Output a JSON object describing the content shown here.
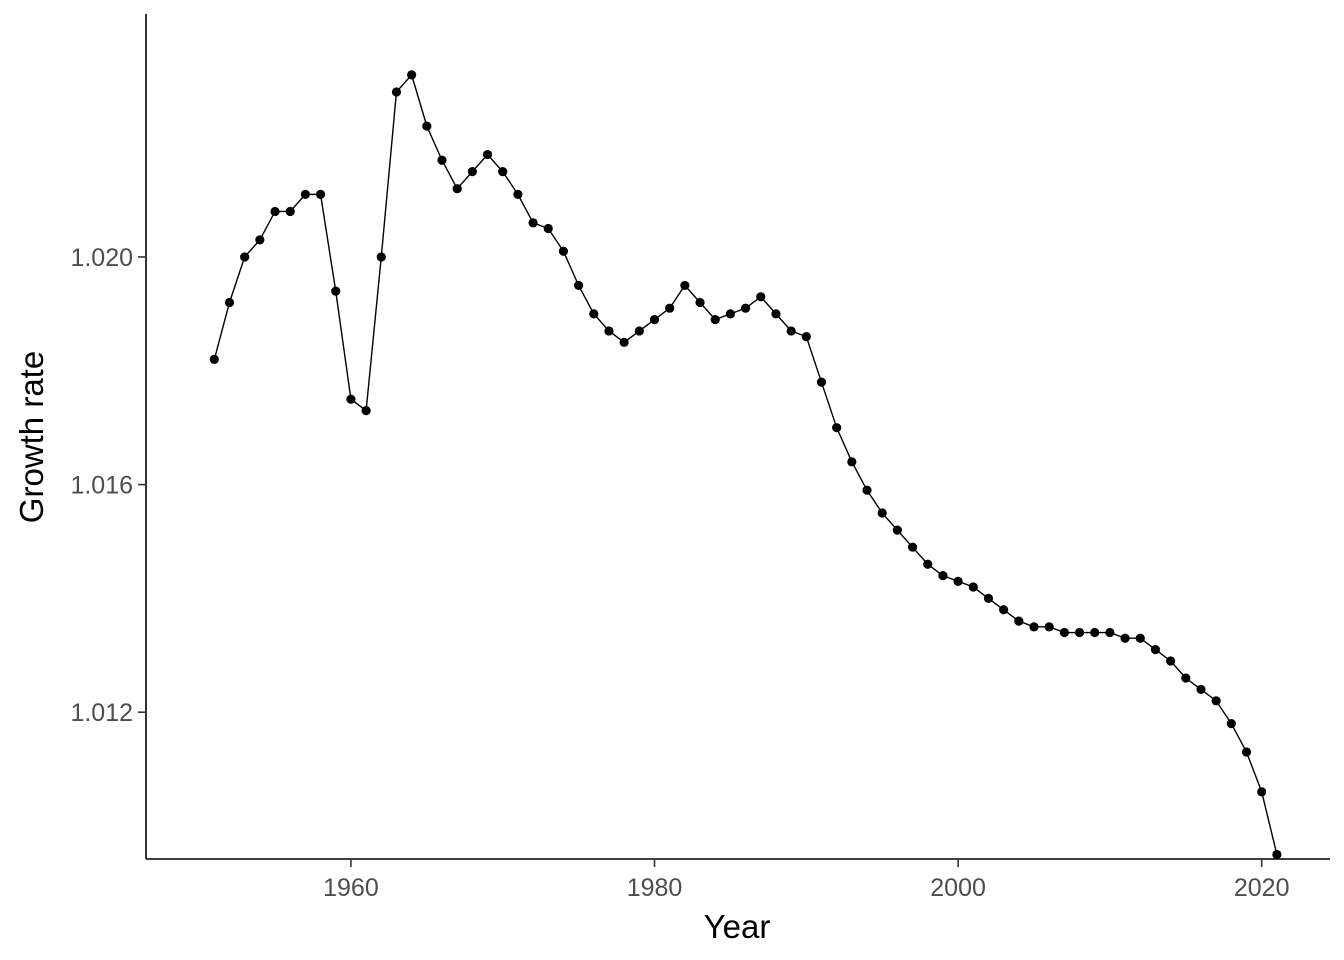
{
  "chart_data": {
    "type": "line",
    "title": "",
    "xlabel": "Year",
    "ylabel": "Growth rate",
    "xlim": [
      1946.5,
      2024.5
    ],
    "ylim": [
      1.00942,
      1.02427
    ],
    "x_ticks": [
      1960,
      1980,
      2000,
      2020
    ],
    "x_tick_labels": [
      "1960",
      "1980",
      "2000",
      "2020"
    ],
    "y_ticks": [
      1.012,
      1.016,
      1.02
    ],
    "y_tick_labels": [
      "1.012",
      "1.016",
      "1.020"
    ],
    "grid": false,
    "legend": "none",
    "colors": {
      "line": "#000000",
      "points": "#000000",
      "axis": "#000000",
      "tick_labels": "#4d4d4d"
    },
    "series": [
      {
        "x": [
          1951,
          1952,
          1953,
          1954,
          1955,
          1956,
          1957,
          1958,
          1959,
          1960,
          1961,
          1962,
          1963,
          1964,
          1965,
          1966,
          1967,
          1968,
          1969,
          1970,
          1971,
          1972,
          1973,
          1974,
          1975,
          1976,
          1977,
          1978,
          1979,
          1980,
          1981,
          1982,
          1983,
          1984,
          1985,
          1986,
          1987,
          1988,
          1989,
          1990,
          1991,
          1992,
          1993,
          1994,
          1995,
          1996,
          1997,
          1998,
          1999,
          2000,
          2001,
          2002,
          2003,
          2004,
          2005,
          2006,
          2007,
          2008,
          2009,
          2010,
          2011,
          2012,
          2013,
          2014,
          2015,
          2016,
          2017,
          2018,
          2019,
          2020,
          2021
        ],
        "values": [
          1.0182,
          1.0192,
          1.02,
          1.0203,
          1.0208,
          1.0208,
          1.0211,
          1.0211,
          1.0194,
          1.0175,
          1.0173,
          1.02,
          1.0229,
          1.0232,
          1.0223,
          1.0217,
          1.0212,
          1.0215,
          1.0218,
          1.0215,
          1.0211,
          1.0206,
          1.0205,
          1.0201,
          1.0195,
          1.019,
          1.0187,
          1.0185,
          1.0187,
          1.0189,
          1.0191,
          1.0195,
          1.0192,
          1.0189,
          1.019,
          1.0191,
          1.0193,
          1.019,
          1.0187,
          1.0186,
          1.0178,
          1.017,
          1.0164,
          1.0159,
          1.0155,
          1.0152,
          1.0149,
          1.0146,
          1.0144,
          1.0143,
          1.0142,
          1.014,
          1.0138,
          1.0136,
          1.0135,
          1.0135,
          1.0134,
          1.0134,
          1.0134,
          1.0134,
          1.0133,
          1.0133,
          1.0131,
          1.0129,
          1.0126,
          1.0124,
          1.0122,
          1.0118,
          1.0113,
          1.0106,
          1.0095
        ]
      }
    ]
  }
}
